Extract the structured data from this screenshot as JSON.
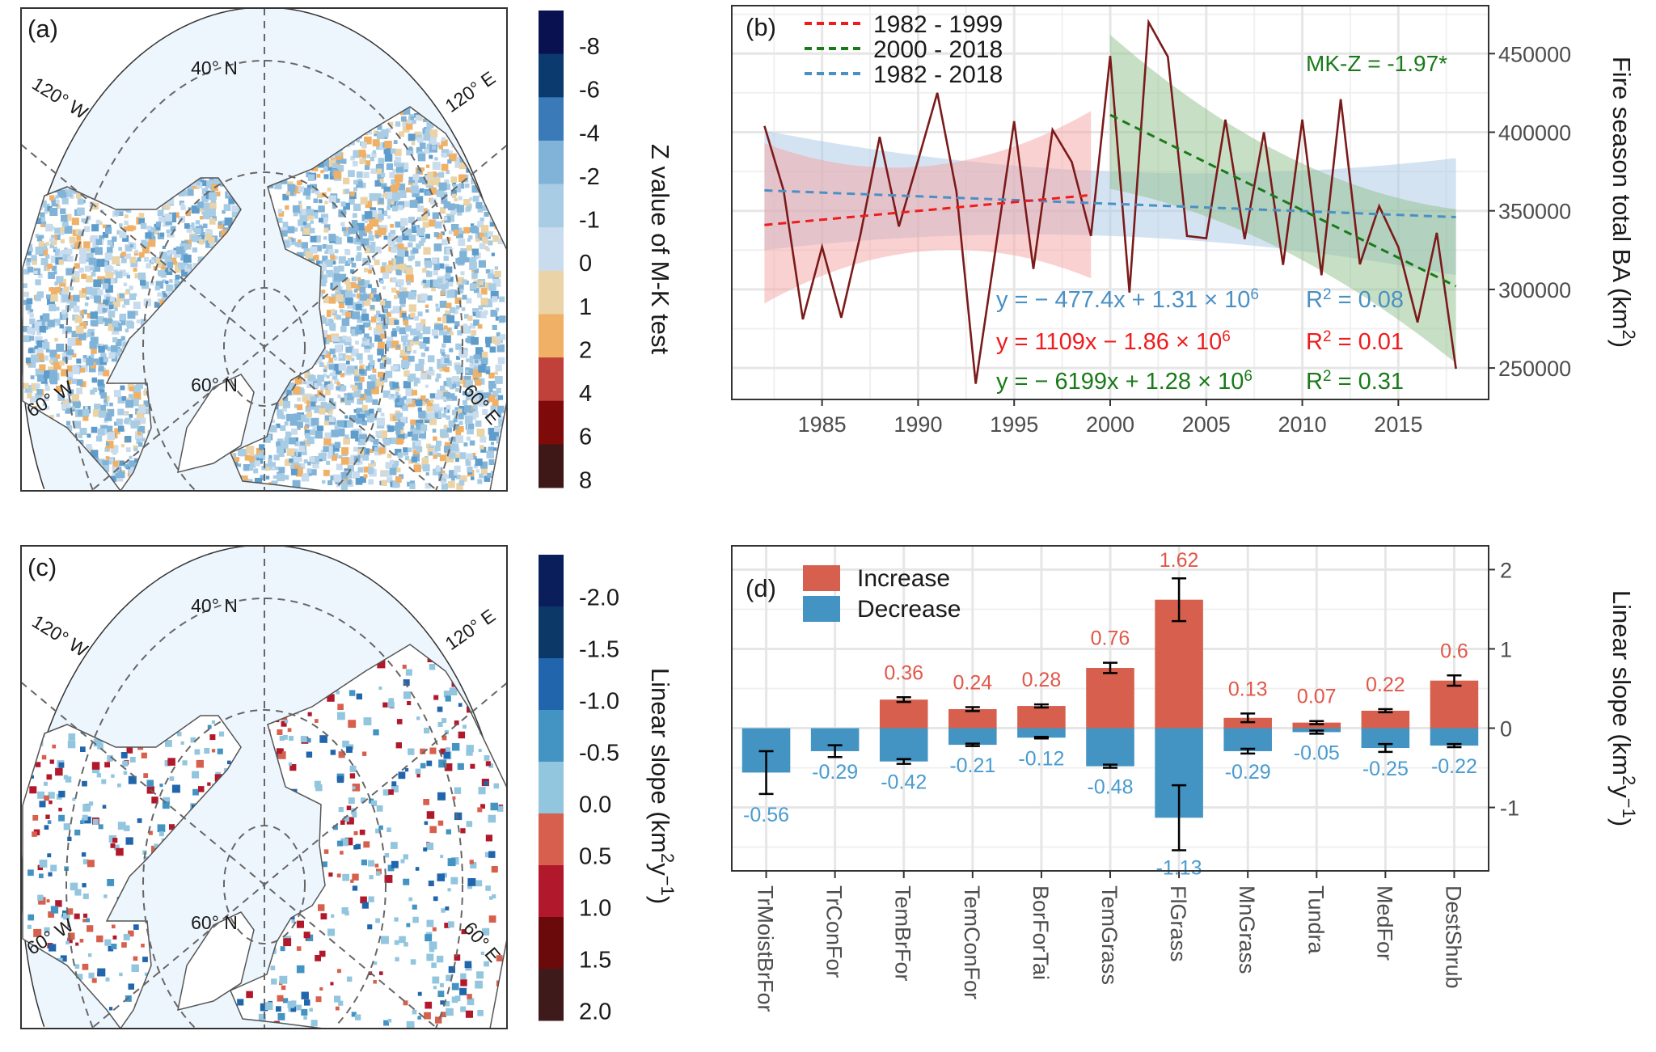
{
  "panels": {
    "a": {
      "label": "(a)",
      "colorbar_title": "Z value of M-K test",
      "colorbar": {
        "labels": [
          "-8",
          "-6",
          "-4",
          "-2",
          "-1",
          "0",
          "1",
          "2",
          "4",
          "6",
          "8"
        ],
        "colors": [
          "#0a1150",
          "#0b3a6e",
          "#3a7ab8",
          "#80b3d7",
          "#a8cce4",
          "#c9dcee",
          "#ead3a6",
          "#f0b066",
          "#c0413a",
          "#7f0a0a",
          "#3e1717"
        ]
      },
      "pixel_colors": [
        "#a8cce4",
        "#80b3d7",
        "#c9dcee",
        "#a8cce4",
        "#80b3d7",
        "#5e9ccb",
        "#ead3a6",
        "#f0b066",
        "#a8cce4",
        "#c9dcee"
      ]
    },
    "c": {
      "label": "(c)",
      "colorbar_title": "Linear slope (km",
      "colorbar_title_sup": "2",
      "colorbar_title_mid": "y",
      "colorbar_title_sup2": "−1",
      "colorbar_title_end": ")",
      "colorbar": {
        "labels": [
          "-2.0",
          "-1.5",
          "-1.0",
          "-0.5",
          "0.0",
          "0.5",
          "1.0",
          "1.5",
          "2.0"
        ],
        "colors": [
          "#0b1e5c",
          "#0c3868",
          "#2166ac",
          "#4393c3",
          "#92c5de",
          "#d6604d",
          "#b2182b",
          "#6b0a0a",
          "#3e1a1a"
        ]
      },
      "pixel_colors": [
        "#92c5de",
        "#92c5de",
        "#4393c3",
        "#92c5de",
        "#2166ac",
        "#d6604d",
        "#b2182b"
      ]
    },
    "map_labels": {
      "lat40": "40° N",
      "lat60": "60° N",
      "lon120w": "120° W",
      "lon120e": "120° E",
      "lon60w": "60° W",
      "lon60e": "60° E"
    },
    "map_colors": {
      "ocean": "#eef6fd",
      "land": "#ffffff",
      "coast": "#555555",
      "graticule": "#666666"
    }
  },
  "chart_data": [
    {
      "type": "line",
      "panel_label": "(b)",
      "ylabel": "Fire season total BA (km",
      "ylabel_sup": "2",
      "ylabel_end": ")",
      "xlim": [
        1980.3,
        2019.7
      ],
      "ylim": [
        230000,
        480500
      ],
      "xticks": [
        1985,
        1990,
        1995,
        2000,
        2005,
        2010,
        2015
      ],
      "yticks": [
        250000,
        300000,
        350000,
        400000,
        450000
      ],
      "y_axis_position": "right",
      "grid": true,
      "legend_position": "top-left",
      "x": [
        1982,
        1983,
        1984,
        1985,
        1986,
        1987,
        1988,
        1989,
        1990,
        1991,
        1992,
        1993,
        1994,
        1995,
        1996,
        1997,
        1998,
        1999,
        2000,
        2001,
        2002,
        2003,
        2004,
        2005,
        2006,
        2007,
        2008,
        2009,
        2010,
        2011,
        2012,
        2013,
        2014,
        2015,
        2016,
        2017,
        2018
      ],
      "y": [
        404000,
        363000,
        281000,
        327000,
        282000,
        335000,
        397000,
        340000,
        382000,
        425000,
        362000,
        240000,
        323000,
        407000,
        313000,
        401500,
        381000,
        334000,
        448500,
        298000,
        470000,
        448000,
        334000,
        332500,
        408000,
        332000,
        400000,
        315600,
        408000,
        309000,
        421000,
        316000,
        353000,
        327000,
        279000,
        336000,
        249500
      ],
      "series_color": "#7b1a1a",
      "trends": [
        {
          "name": "1982 - 1999",
          "color": "#ee1c1c",
          "fill": "#f5a3a3",
          "x": [
            1982,
            1999
          ],
          "y": [
            341000,
            360000
          ],
          "ci": {
            "years": [
              1982,
              1990,
              1999
            ],
            "lower": [
              291000,
              324000,
              307000
            ],
            "upper": [
              393000,
              378000,
              413500
            ]
          },
          "equation": "y = 1109x − 1.86 × 10",
          "equation_sup": "6",
          "r2_label": "R",
          "r2_sup": "2",
          "r2_value": " = 0.01"
        },
        {
          "name": "2000 - 2018",
          "color": "#1a7a1a",
          "fill": "#8fbf8a",
          "x": [
            2000,
            2018
          ],
          "y": [
            411000,
            302000
          ],
          "ci": {
            "years": [
              2000,
              2009,
              2018
            ],
            "lower": [
              364000,
              325000,
              253000
            ],
            "upper": [
              462000,
              386000,
              351000
            ]
          },
          "equation": "y = − 6199x + 1.28 × 10",
          "equation_sup": "6",
          "r2_label": "R",
          "r2_sup": "2",
          "r2_value": " = 0.31"
        },
        {
          "name": "1982 - 2018",
          "color": "#4a90c4",
          "fill": "#a9c8e6",
          "x": [
            1982,
            2018
          ],
          "y": [
            363000,
            346000
          ],
          "ci": {
            "years": [
              1982,
              2000,
              2018
            ],
            "lower": [
              325000,
              334000,
              309000
            ],
            "upper": [
              401000,
              375000,
              383500
            ]
          },
          "equation": "y = − 477.4x + 1.31 × 10",
          "equation_sup": "6",
          "r2_label": "R",
          "r2_sup": "2",
          "r2_value": " = 0.08"
        }
      ],
      "annotation": "MK-Z = -1.97*"
    },
    {
      "type": "bar",
      "panel_label": "(d)",
      "ylabel": "Linear slope (km",
      "ylabel_sup": "2",
      "ylabel_mid": "y",
      "ylabel_sup2": "−1",
      "ylabel_end": ")",
      "ylim": [
        -1.8,
        2.3
      ],
      "yticks": [
        -1,
        0,
        1,
        2
      ],
      "y_axis_position": "right",
      "grid": true,
      "legend_position": "top-left",
      "categories": [
        "TrMoistBrFor",
        "TrConFor",
        "TemBrFor",
        "TemConFor",
        "BorForTai",
        "TemGrass",
        "FlGrass",
        "MnGrass",
        "Tundra",
        "MedFor",
        "DestShrub"
      ],
      "series": [
        {
          "name": "Increase",
          "color": "#d6604d",
          "label_color": "#e0584a",
          "values": [
            null,
            null,
            0.36,
            0.24,
            0.28,
            0.76,
            1.62,
            0.13,
            0.07,
            0.22,
            0.6
          ],
          "labels": [
            "",
            "",
            "0.36",
            "0.24",
            "0.28",
            "0.76",
            "1.62",
            "0.13",
            "0.07",
            "0.22",
            "0.6"
          ],
          "errors": [
            null,
            null,
            0.03,
            0.025,
            0.02,
            0.065,
            0.27,
            0.055,
            0.02,
            0.02,
            0.065
          ]
        },
        {
          "name": "Decrease",
          "color": "#4393c3",
          "label_color": "#4a9bd0",
          "values": [
            -0.56,
            -0.29,
            -0.42,
            -0.21,
            -0.12,
            -0.48,
            -1.13,
            -0.29,
            -0.05,
            -0.25,
            -0.22
          ],
          "labels": [
            "-0.56",
            "-0.29",
            "-0.42",
            "-0.21",
            "-0.12",
            "-0.48",
            "-1.13",
            "-0.29",
            "-0.05",
            "-0.25",
            "-0.22"
          ],
          "errors": [
            0.27,
            0.075,
            0.03,
            0.015,
            0.01,
            0.02,
            0.41,
            0.03,
            0.02,
            0.05,
            0.02
          ]
        }
      ]
    }
  ]
}
